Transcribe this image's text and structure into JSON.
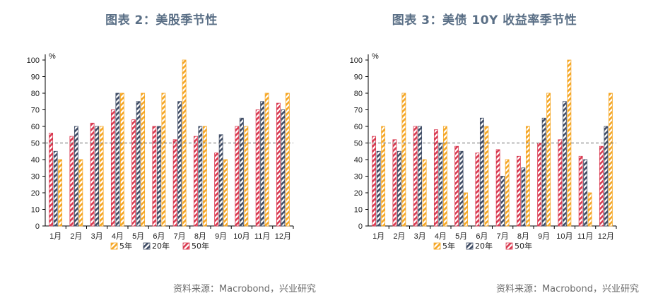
{
  "legend_colors": {
    "y5": "#f5a623",
    "y20": "#3d4a63",
    "y50": "#d9384f"
  },
  "chart_data": [
    {
      "type": "bar",
      "title": "图表 2：美股季节性",
      "source": "资料来源：Macrobond，兴业研究",
      "ylabel": "%",
      "ylim": [
        0,
        100
      ],
      "yticks": [
        "0",
        "10",
        "20",
        "30",
        "40",
        "50",
        "60",
        "70",
        "80",
        "90",
        "100"
      ],
      "reference_line": 50,
      "categories": [
        "1月",
        "2月",
        "3月",
        "4月",
        "5月",
        "6月",
        "7月",
        "8月",
        "9月",
        "10月",
        "11月",
        "12月"
      ],
      "series": [
        {
          "name": "50年",
          "key": "y50",
          "values": [
            56,
            54,
            62,
            70,
            64,
            60,
            52,
            54,
            44,
            60,
            70,
            74
          ]
        },
        {
          "name": "20年",
          "key": "y20",
          "values": [
            45,
            60,
            60,
            80,
            75,
            60,
            75,
            60,
            55,
            65,
            75,
            70
          ]
        },
        {
          "name": "5年",
          "key": "y5",
          "values": [
            40,
            40,
            60,
            80,
            80,
            80,
            100,
            60,
            40,
            60,
            80,
            80
          ]
        }
      ]
    },
    {
      "type": "bar",
      "title": "图表 3：美债 10Y 收益率季节性",
      "source": "资料来源：Macrobond，兴业研究",
      "ylabel": "%",
      "ylim": [
        0,
        100
      ],
      "yticks": [
        "0",
        "10",
        "20",
        "30",
        "40",
        "50",
        "60",
        "70",
        "80",
        "90",
        "100"
      ],
      "reference_line": 50,
      "categories": [
        "1月",
        "2月",
        "3月",
        "4月",
        "5月",
        "6月",
        "7月",
        "8月",
        "9月",
        "10月",
        "11月",
        "12月"
      ],
      "series": [
        {
          "name": "50年",
          "key": "y50",
          "values": [
            54,
            52,
            60,
            58,
            48,
            44,
            46,
            42,
            50,
            52,
            42,
            48
          ]
        },
        {
          "name": "20年",
          "key": "y20",
          "values": [
            45,
            45,
            60,
            50,
            45,
            65,
            30,
            35,
            65,
            75,
            40,
            60
          ]
        },
        {
          "name": "5年",
          "key": "y5",
          "values": [
            60,
            80,
            40,
            60,
            20,
            60,
            40,
            60,
            80,
            100,
            20,
            80
          ]
        }
      ]
    }
  ]
}
